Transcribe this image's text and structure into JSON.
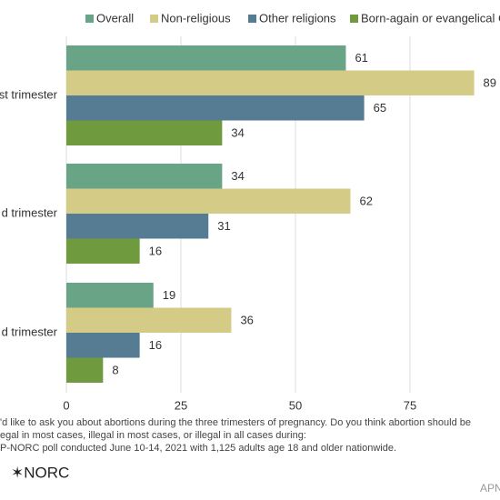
{
  "chart_data": {
    "type": "hbar",
    "categories": [
      "st trimester",
      "d trimester",
      "d trimester"
    ],
    "series": [
      {
        "name": "Overall",
        "color": "#6aa486",
        "values": [
          61,
          34,
          19
        ]
      },
      {
        "name": "Non-religious",
        "color": "#d4cb86",
        "values": [
          89,
          62,
          36
        ]
      },
      {
        "name": "Other religions",
        "color": "#557c93",
        "values": [
          65,
          31,
          16
        ]
      },
      {
        "name": "Born-again or evangelical C",
        "color": "#6f9a3e",
        "values": [
          34,
          16,
          8
        ]
      }
    ],
    "xlim": [
      0,
      95
    ],
    "xticks": [
      0,
      25,
      50,
      75
    ],
    "grid": true,
    "notes": [
      "'d like to ask you about abortions during the three trimesters of pregnancy. Do you think abortion should be",
      "egal in most cases, illegal in most cases, or illegal in all cases during:",
      "P-NORC poll conducted June 10-14, 2021 with 1,125 adults age 18 and older nationwide."
    ],
    "logo": "✶NORC",
    "credit": "APN"
  }
}
